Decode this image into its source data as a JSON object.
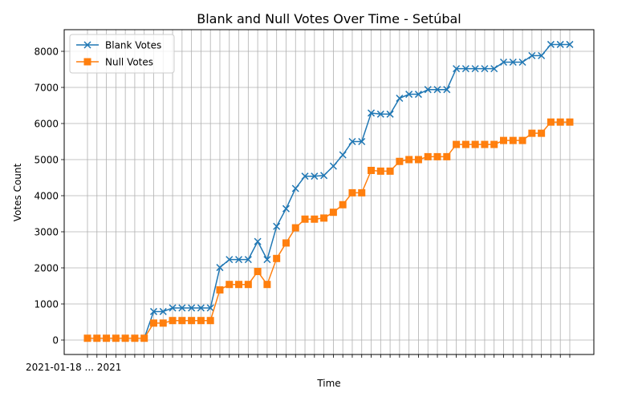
{
  "chart_data": {
    "type": "line",
    "title": "Blank and Null Votes Over Time - Setúbal",
    "xlabel": "Time",
    "ylabel": "Votes Count",
    "ylim": [
      -400,
      8600
    ],
    "yticks": [
      0,
      1000,
      2000,
      3000,
      4000,
      5000,
      6000,
      7000,
      8000
    ],
    "grid": true,
    "legend_position": "upper-left",
    "x_tick_text": "2021-01-18 ... 2021",
    "series": [
      {
        "name": "Blank Votes",
        "color": "#1f77b4",
        "marker": "x",
        "values": [
          50,
          50,
          50,
          50,
          50,
          50,
          50,
          790,
          790,
          890,
          890,
          890,
          890,
          890,
          2010,
          2230,
          2230,
          2230,
          2730,
          2230,
          3150,
          3640,
          4200,
          4540,
          4540,
          4560,
          4820,
          5130,
          5500,
          5500,
          6290,
          6260,
          6260,
          6700,
          6810,
          6810,
          6940,
          6940,
          6940,
          7520,
          7520,
          7520,
          7520,
          7520,
          7700,
          7700,
          7700,
          7880,
          7880,
          8190,
          8190,
          8190
        ]
      },
      {
        "name": "Null Votes",
        "color": "#ff7f0e",
        "marker": "s",
        "values": [
          50,
          50,
          50,
          50,
          50,
          50,
          50,
          470,
          470,
          540,
          540,
          540,
          540,
          540,
          1390,
          1540,
          1540,
          1540,
          1900,
          1540,
          2260,
          2690,
          3110,
          3350,
          3350,
          3380,
          3540,
          3750,
          4080,
          4080,
          4700,
          4680,
          4680,
          4950,
          5000,
          5000,
          5080,
          5080,
          5080,
          5420,
          5420,
          5420,
          5420,
          5420,
          5530,
          5530,
          5530,
          5730,
          5730,
          6040,
          6040,
          6040
        ]
      }
    ]
  }
}
